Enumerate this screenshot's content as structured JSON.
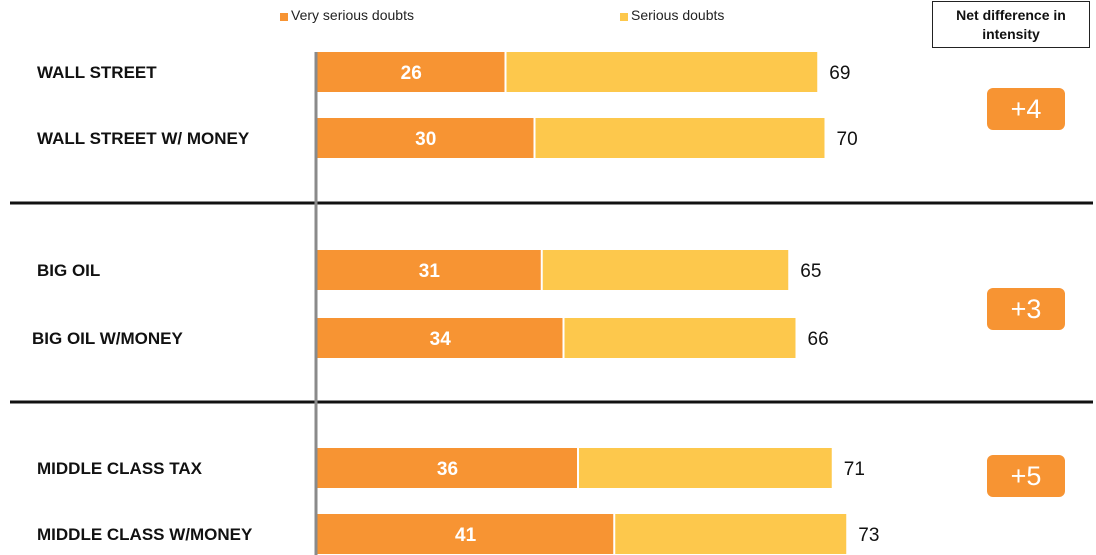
{
  "legend": {
    "very_serious": "Very serious doubts",
    "serious": "Serious doubts"
  },
  "net_header": {
    "line1": "Net difference in",
    "line2": "intensity"
  },
  "colors": {
    "very_serious": "#F79433",
    "serious": "#FDC84C",
    "badge": "#F79433",
    "axis": "#8a8a8a",
    "text": "#111111"
  },
  "chart_data": {
    "type": "bar",
    "orientation": "horizontal",
    "stacked": true,
    "categories": [
      "WALL STREET",
      "WALL STREET W/ MONEY",
      "BIG OIL",
      "BIG OIL W/MONEY",
      "MIDDLE CLASS TAX",
      "MIDDLE CLASS W/MONEY"
    ],
    "series": [
      {
        "name": "Very serious doubts",
        "values": [
          26,
          30,
          31,
          34,
          36,
          41
        ]
      },
      {
        "name": "Serious doubts",
        "values": [
          43,
          40,
          34,
          32,
          35,
          32
        ]
      }
    ],
    "totals": [
      69,
      70,
      65,
      66,
      71,
      73
    ],
    "groups": [
      {
        "rows": [
          0,
          1
        ],
        "net_difference": "+4"
      },
      {
        "rows": [
          2,
          3
        ],
        "net_difference": "+3"
      },
      {
        "rows": [
          4,
          5
        ],
        "net_difference": "+5"
      }
    ],
    "xlim": [
      0,
      73
    ],
    "legend_position": "top",
    "grid": false
  }
}
